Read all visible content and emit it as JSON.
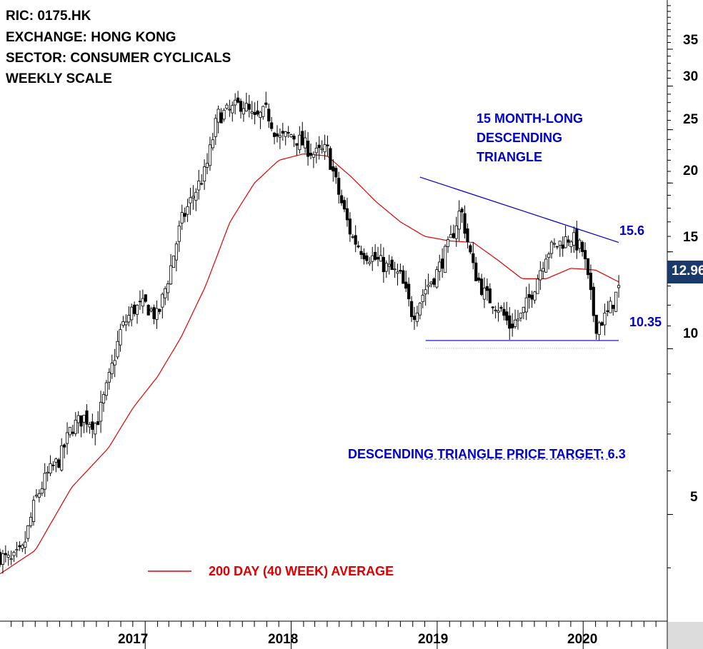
{
  "header": {
    "ric": "RIC: 0175.HK",
    "exchange": "EXCHANGE: HONG KONG",
    "sector": "SECTOR: CONSUMER CYCLICALS",
    "scale": "WEEKLY SCALE"
  },
  "annotations": {
    "pattern": [
      "15 MONTH-LONG",
      "DESCENDING",
      "TRIANGLE"
    ],
    "resistance": "15.6",
    "support": "10.35",
    "target": "DESCENDING TRIANGLE PRICE TARGET: 6.3",
    "ma_legend": "200 DAY (40 WEEK) AVERAGE",
    "last_price": "12.96"
  },
  "colors": {
    "candle": "#000000",
    "ma": "#e00000",
    "trendline": "#0000cc",
    "annotation_text": "#0000cc",
    "legend_text": "#e00000",
    "price_tag_bg": "#1a3a6b"
  },
  "chart_data": {
    "type": "candlestick",
    "y_scale": "log",
    "ylim": [
      3.2,
      43
    ],
    "yticks": [
      5,
      10,
      15,
      20,
      25,
      30,
      35
    ],
    "xticks": [
      "2017",
      "2018",
      "2019",
      "2020"
    ],
    "x_range": [
      "2016-01-04",
      "2020-04-06"
    ],
    "weekly_close": [
      [
        "2016-01-04",
        4.2
      ],
      [
        "2016-02-01",
        4.1
      ],
      [
        "2016-03-01",
        4.3
      ],
      [
        "2016-04-01",
        5.3
      ],
      [
        "2016-05-01",
        5.9
      ],
      [
        "2016-06-01",
        6.3
      ],
      [
        "2016-07-01",
        7.2
      ],
      [
        "2016-08-01",
        7.5
      ],
      [
        "2016-09-01",
        7.3
      ],
      [
        "2016-10-01",
        8.7
      ],
      [
        "2016-11-01",
        10.8
      ],
      [
        "2016-12-01",
        11.8
      ],
      [
        "2017-01-02",
        12.0
      ],
      [
        "2017-02-01",
        11.4
      ],
      [
        "2017-03-01",
        13.6
      ],
      [
        "2017-04-01",
        17.0
      ],
      [
        "2017-05-01",
        19.0
      ],
      [
        "2017-06-01",
        21.0
      ],
      [
        "2017-07-01",
        26.5
      ],
      [
        "2017-08-01",
        27.0
      ],
      [
        "2017-09-01",
        28.0
      ],
      [
        "2017-10-01",
        26.0
      ],
      [
        "2017-11-01",
        27.0
      ],
      [
        "2017-12-01",
        24.0
      ],
      [
        "2018-01-01",
        24.5
      ],
      [
        "2018-02-01",
        23.5
      ],
      [
        "2018-03-01",
        22.5
      ],
      [
        "2018-04-01",
        23.0
      ],
      [
        "2018-05-01",
        19.0
      ],
      [
        "2018-06-01",
        16.0
      ],
      [
        "2018-07-01",
        15.0
      ],
      [
        "2018-08-01",
        14.5
      ],
      [
        "2018-09-01",
        14.0
      ],
      [
        "2018-10-01",
        13.5
      ],
      [
        "2018-11-01",
        11.5
      ],
      [
        "2018-12-01",
        12.8
      ],
      [
        "2019-01-01",
        13.8
      ],
      [
        "2019-02-01",
        15.5
      ],
      [
        "2019-03-01",
        18.0
      ],
      [
        "2019-04-01",
        14.0
      ],
      [
        "2019-05-01",
        12.5
      ],
      [
        "2019-06-01",
        12.0
      ],
      [
        "2019-07-01",
        11.0
      ],
      [
        "2019-08-01",
        11.5
      ],
      [
        "2019-09-01",
        13.0
      ],
      [
        "2019-10-01",
        15.0
      ],
      [
        "2019-11-01",
        15.5
      ],
      [
        "2019-12-01",
        16.0
      ],
      [
        "2020-01-01",
        15.0
      ],
      [
        "2020-02-01",
        11.0
      ],
      [
        "2020-03-01",
        11.5
      ],
      [
        "2020-04-01",
        12.96
      ]
    ],
    "ma_40w": [
      [
        "2016-01-04",
        3.9
      ],
      [
        "2016-04-01",
        4.3
      ],
      [
        "2016-07-01",
        5.6
      ],
      [
        "2016-10-01",
        6.6
      ],
      [
        "2016-12-01",
        7.8
      ],
      [
        "2017-02-01",
        8.9
      ],
      [
        "2017-04-01",
        10.5
      ],
      [
        "2017-06-01",
        13.0
      ],
      [
        "2017-08-01",
        17.0
      ],
      [
        "2017-10-01",
        20.0
      ],
      [
        "2017-12-01",
        22.0
      ],
      [
        "2018-02-01",
        22.6
      ],
      [
        "2018-04-01",
        22.4
      ],
      [
        "2018-06-01",
        20.5
      ],
      [
        "2018-08-01",
        18.5
      ],
      [
        "2018-10-01",
        17.0
      ],
      [
        "2018-12-01",
        16.0
      ],
      [
        "2019-02-01",
        15.7
      ],
      [
        "2019-04-01",
        15.6
      ],
      [
        "2019-06-01",
        14.5
      ],
      [
        "2019-08-01",
        13.4
      ],
      [
        "2019-10-01",
        13.4
      ],
      [
        "2019-12-01",
        14.0
      ],
      [
        "2020-02-01",
        13.9
      ],
      [
        "2020-04-01",
        13.2
      ]
    ],
    "resistance_line": [
      [
        "2018-11-19",
        20.5
      ],
      [
        "2020-03-30",
        15.6
      ]
    ],
    "support_line": [
      [
        "2018-12-03",
        10.35
      ],
      [
        "2020-03-30",
        10.35
      ]
    ],
    "target_level": 6.3
  }
}
